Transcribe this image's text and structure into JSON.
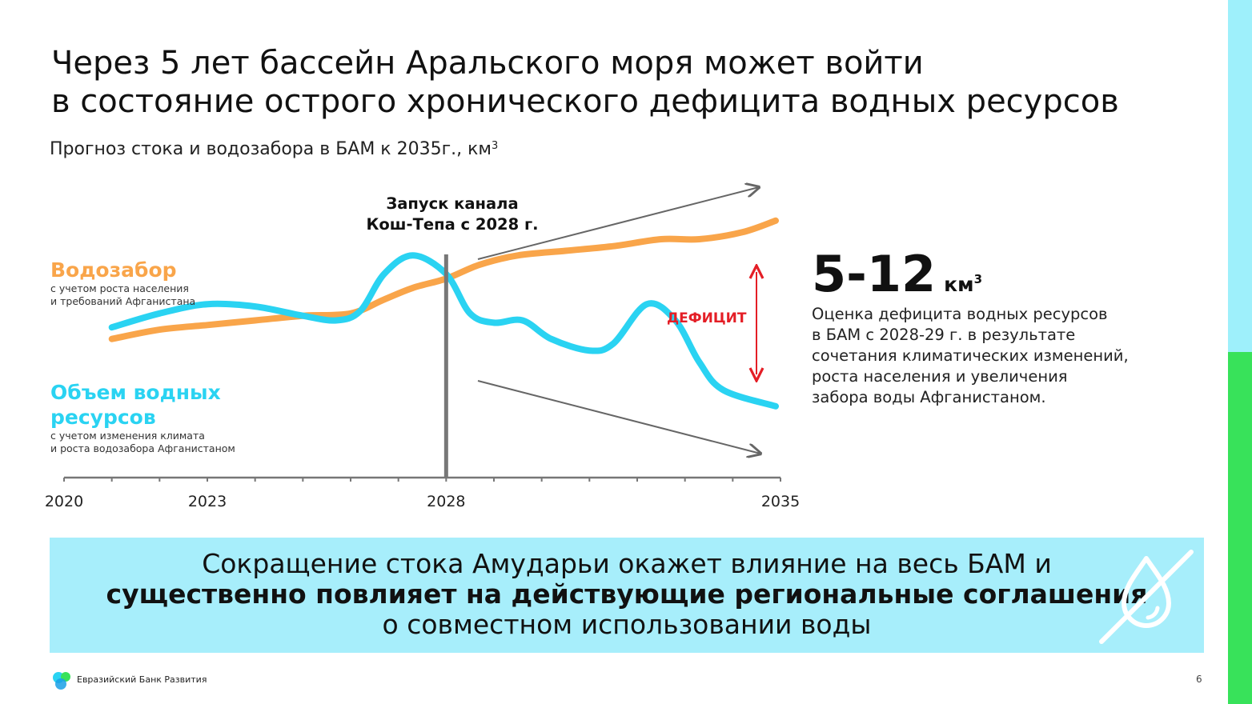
{
  "title_lines": [
    "Через 5 лет бассейн Аральского моря может войти",
    "в состояние острого хронического дефицита водных ресурсов"
  ],
  "subtitle": "Прогноз стока и водозабора в БАМ к 2035г., км",
  "subtitle_sup": "3",
  "series_labels": {
    "withdrawal": {
      "head": "Водозабор",
      "note1": "с учетом роста населения",
      "note2": "и требований Афганистана"
    },
    "resources": {
      "head": "Объем водных ресурсов",
      "note1": "с учетом изменения климата",
      "note2": "и роста водозабора Афганистаном"
    }
  },
  "annotation": {
    "line1": "Запуск канала",
    "line2": "Кош-Тепа с 2028 г."
  },
  "deficit_label": "ДЕФИЦИТ",
  "estimate": {
    "value": "5-12",
    "unit": "км",
    "unit_sup": "3",
    "desc": [
      "Оценка дефицита водных ресурсов",
      "в БАМ с 2028-29 г. в результате",
      "сочетания климатических изменений,",
      "роста населения и увеличения",
      "забора воды Афганистаном."
    ]
  },
  "banner": {
    "line1": "Сокращение стока Амударьи окажет влияние на весь БАМ и",
    "line2": "существенно повлияет на действующие региональные соглашения",
    "line3": "о совместном использовании воды",
    "icon": "water-drop-crossed-icon"
  },
  "footer": {
    "logo_text": "Евразийский Банк Развития",
    "page": "6"
  },
  "colors": {
    "withdrawal": "#f9a54a",
    "resources": "#2ad3f2",
    "deficit": "#e41e26",
    "banner_bg": "#a7eefb",
    "edge_top": "#9ef0fb",
    "edge_bottom": "#38e25a"
  },
  "chart_data": {
    "type": "line",
    "xlim": [
      2020,
      2035
    ],
    "x_ticks": [
      2020,
      2023,
      2028,
      2035
    ],
    "tick_labels": [
      "2020",
      "2023",
      "2028",
      "2035"
    ],
    "marker_year": 2028,
    "y_axis_shown": false,
    "series": [
      {
        "key": "withdrawal",
        "color": "#f9a54a",
        "x": [
          2021,
          2022,
          2023,
          2024,
          2025,
          2026,
          2026.7,
          2027.3,
          2028,
          2028.7,
          2029.5,
          2030.5,
          2031.5,
          2032.5,
          2033.3,
          2034.2,
          2034.9
        ],
        "y": [
          47,
          51,
          53,
          55,
          57,
          58,
          64,
          69,
          73,
          79,
          83,
          85,
          87,
          90,
          90,
          93,
          98
        ]
      },
      {
        "key": "resources",
        "color": "#2ad3f2",
        "x": [
          2021,
          2022,
          2023,
          2024,
          2025,
          2025.7,
          2026.2,
          2026.7,
          2027.3,
          2028,
          2028.5,
          2029,
          2029.6,
          2030.2,
          2031,
          2031.5,
          2032.2,
          2032.8,
          2033.3,
          2033.8,
          2034.9
        ],
        "y": [
          52,
          58,
          62,
          61,
          57,
          55,
          59,
          75,
          83,
          75,
          58,
          54,
          55,
          47,
          42,
          45,
          62,
          55,
          37,
          25,
          18
        ]
      }
    ]
  }
}
